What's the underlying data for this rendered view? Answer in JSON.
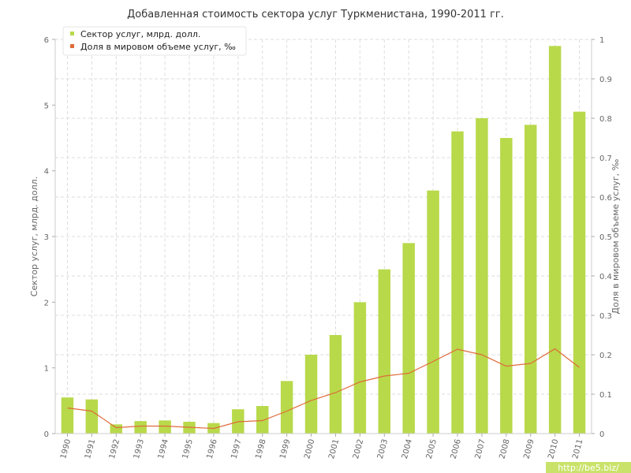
{
  "chart_data": {
    "type": "bar",
    "title": "Добавленная стоимость сектора услуг Туркменистана, 1990-2011 гг.",
    "categories": [
      "1990",
      "1991",
      "1992",
      "1993",
      "1994",
      "1995",
      "1996",
      "1997",
      "1998",
      "1999",
      "2000",
      "2001",
      "2002",
      "2003",
      "2004",
      "2005",
      "2006",
      "2007",
      "2008",
      "2009",
      "2010",
      "2011"
    ],
    "series": [
      {
        "name": "Сектор услуг, млрд. долл.",
        "type": "bar",
        "axis": "left",
        "color": "#b8d94a",
        "values": [
          0.55,
          0.52,
          0.14,
          0.19,
          0.2,
          0.18,
          0.16,
          0.37,
          0.42,
          0.8,
          1.2,
          1.5,
          2.0,
          2.5,
          2.9,
          3.7,
          4.6,
          4.8,
          4.5,
          4.7,
          5.9,
          4.9
        ]
      },
      {
        "name": "Доля в мировом объеме услуг, ‰",
        "type": "line",
        "axis": "right",
        "color": "#e06a3a",
        "values": [
          0.065,
          0.057,
          0.015,
          0.019,
          0.019,
          0.016,
          0.013,
          0.03,
          0.033,
          0.057,
          0.084,
          0.104,
          0.131,
          0.146,
          0.153,
          0.183,
          0.214,
          0.2,
          0.171,
          0.178,
          0.215,
          0.168
        ]
      }
    ],
    "ylabel": "Сектор услуг, млрд. долл.",
    "y2label": "Доля в мировом объеме услуг, ‰",
    "ylim": [
      0,
      6
    ],
    "y2lim": [
      0,
      1
    ],
    "yticks": [
      "0",
      "1",
      "2",
      "3",
      "4",
      "5",
      "6"
    ],
    "y2ticks": [
      "0",
      "0.1",
      "0.2",
      "0.3",
      "0.4",
      "0.5",
      "0.6",
      "0.7",
      "0.8",
      "0.9",
      "1"
    ],
    "grid": true,
    "legend_position": "top-left"
  },
  "watermark": "http://be5.biz/",
  "colors": {
    "watermark_bg": "#c9e36a",
    "grid": "#dddddd"
  }
}
